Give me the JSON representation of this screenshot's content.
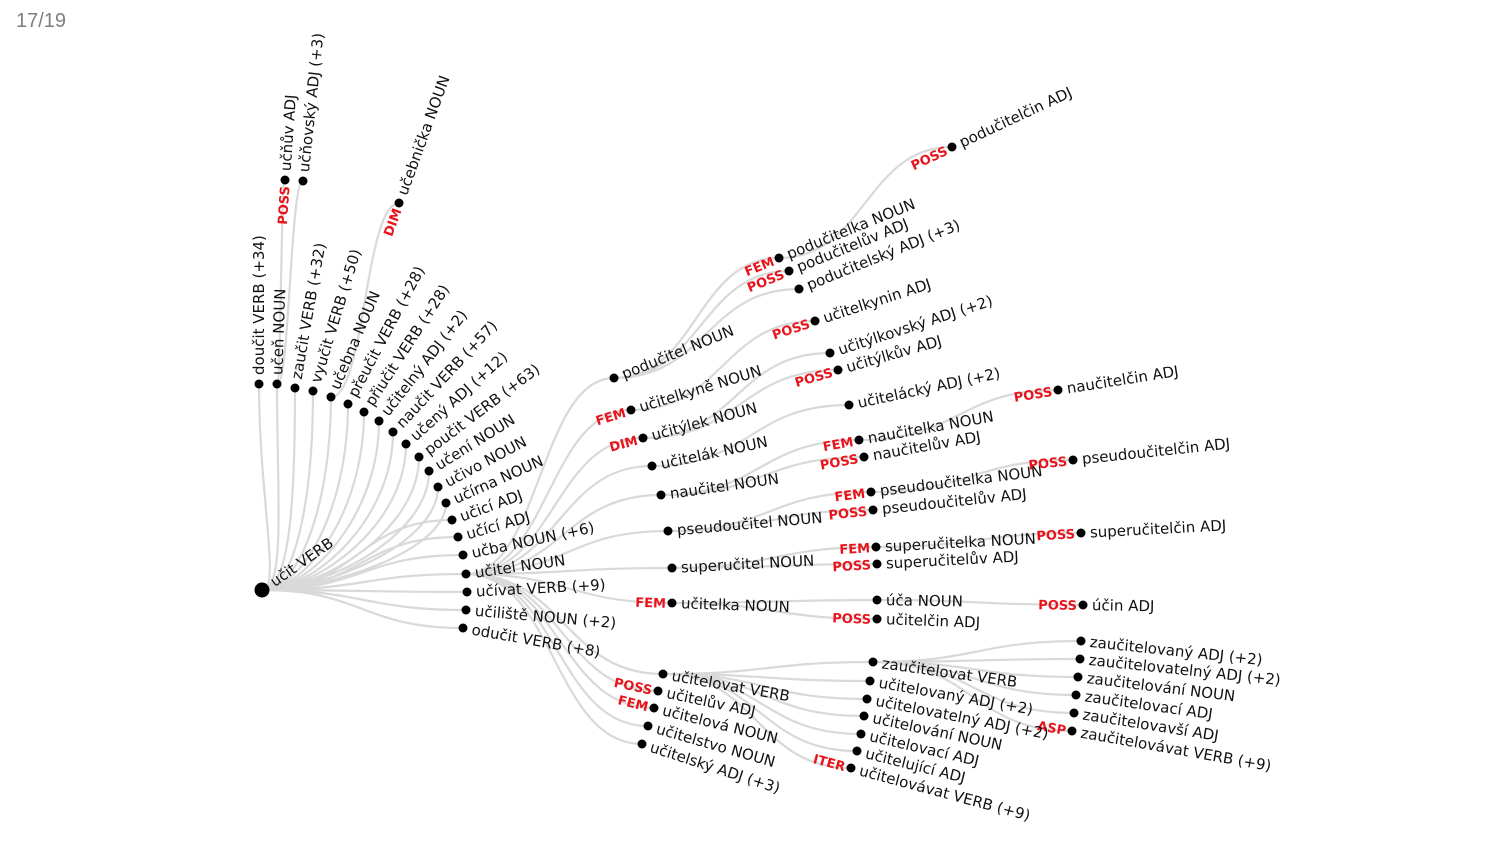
{
  "slide": {
    "page_number": "17/19"
  },
  "colors": {
    "edge": "#d9d9d9",
    "node": "#000000",
    "edge_label": "#e8141c"
  },
  "tree": {
    "nodes": [
      {
        "id": "root",
        "label": "učit VERB",
        "parent": null,
        "edge": ""
      },
      {
        "id": "n1",
        "label": "doučit VERB (+34)",
        "parent": "root",
        "edge": ""
      },
      {
        "id": "n2",
        "label": "učeň NOUN",
        "parent": "root",
        "edge": ""
      },
      {
        "id": "n2a",
        "label": "učňův ADJ",
        "parent": "n2",
        "edge": "POSS"
      },
      {
        "id": "n2b",
        "label": "učňovský ADJ (+3)",
        "parent": "n2",
        "edge": ""
      },
      {
        "id": "n3",
        "label": "zaučit VERB (+32)",
        "parent": "root",
        "edge": ""
      },
      {
        "id": "n4",
        "label": "vyučit VERB (+50)",
        "parent": "root",
        "edge": ""
      },
      {
        "id": "n5",
        "label": "učebna NOUN",
        "parent": "root",
        "edge": ""
      },
      {
        "id": "n5a",
        "label": "učebnička NOUN",
        "parent": "n5",
        "edge": "DIM"
      },
      {
        "id": "n6",
        "label": "přeučit VERB (+28)",
        "parent": "root",
        "edge": ""
      },
      {
        "id": "n7",
        "label": "přiučit VERB (+28)",
        "parent": "root",
        "edge": ""
      },
      {
        "id": "n8",
        "label": "učitelný ADJ (+2)",
        "parent": "root",
        "edge": ""
      },
      {
        "id": "n9",
        "label": "naučit VERB (+57)",
        "parent": "root",
        "edge": ""
      },
      {
        "id": "n10",
        "label": "učený ADJ (+12)",
        "parent": "root",
        "edge": ""
      },
      {
        "id": "n11",
        "label": "poučit VERB (+63)",
        "parent": "root",
        "edge": ""
      },
      {
        "id": "n12",
        "label": "učení NOUN",
        "parent": "root",
        "edge": ""
      },
      {
        "id": "n13",
        "label": "učivo NOUN",
        "parent": "root",
        "edge": ""
      },
      {
        "id": "n14",
        "label": "učírna NOUN",
        "parent": "root",
        "edge": ""
      },
      {
        "id": "n15",
        "label": "učicí ADJ",
        "parent": "root",
        "edge": ""
      },
      {
        "id": "n16",
        "label": "učící ADJ",
        "parent": "root",
        "edge": ""
      },
      {
        "id": "n17",
        "label": "učba NOUN (+6)",
        "parent": "root",
        "edge": ""
      },
      {
        "id": "t",
        "label": "učitel NOUN",
        "parent": "root",
        "edge": ""
      },
      {
        "id": "n19",
        "label": "učívat VERB (+9)",
        "parent": "root",
        "edge": ""
      },
      {
        "id": "n20",
        "label": "učiliště NOUN (+2)",
        "parent": "root",
        "edge": ""
      },
      {
        "id": "n21",
        "label": "odučit VERB (+8)",
        "parent": "root",
        "edge": ""
      },
      {
        "id": "p",
        "label": "podučitel NOUN",
        "parent": "t",
        "edge": ""
      },
      {
        "id": "p1",
        "label": "podučitelka NOUN",
        "parent": "p",
        "edge": "FEM"
      },
      {
        "id": "p1a",
        "label": "podučitelčin ADJ",
        "parent": "p1",
        "edge": "POSS"
      },
      {
        "id": "p2",
        "label": "podučitelův ADJ",
        "parent": "p",
        "edge": "POSS"
      },
      {
        "id": "p3",
        "label": "podučitelský ADJ (+3)",
        "parent": "p",
        "edge": ""
      },
      {
        "id": "k",
        "label": "učitelkyně NOUN",
        "parent": "t",
        "edge": "FEM"
      },
      {
        "id": "k1",
        "label": "učitelkynin ADJ",
        "parent": "k",
        "edge": "POSS"
      },
      {
        "id": "y",
        "label": "učitýlek NOUN",
        "parent": "t",
        "edge": "DIM"
      },
      {
        "id": "y1",
        "label": "učitýlkovský ADJ (+2)",
        "parent": "y",
        "edge": ""
      },
      {
        "id": "y2",
        "label": "učitýlkův ADJ",
        "parent": "y",
        "edge": "POSS"
      },
      {
        "id": "l",
        "label": "učitelák NOUN",
        "parent": "t",
        "edge": ""
      },
      {
        "id": "l1",
        "label": "učitelácký ADJ (+2)",
        "parent": "l",
        "edge": ""
      },
      {
        "id": "na",
        "label": "naučitel NOUN",
        "parent": "t",
        "edge": ""
      },
      {
        "id": "na1",
        "label": "naučitelka NOUN",
        "parent": "na",
        "edge": "FEM"
      },
      {
        "id": "na1a",
        "label": "naučitelčin ADJ",
        "parent": "na1",
        "edge": "POSS"
      },
      {
        "id": "na2",
        "label": "naučitelův ADJ",
        "parent": "na",
        "edge": "POSS"
      },
      {
        "id": "ps",
        "label": "pseudoučitel NOUN",
        "parent": "t",
        "edge": ""
      },
      {
        "id": "ps1",
        "label": "pseudoučitelka NOUN",
        "parent": "ps",
        "edge": "FEM"
      },
      {
        "id": "ps1a",
        "label": "pseudoučitelčin ADJ",
        "parent": "ps1",
        "edge": "POSS"
      },
      {
        "id": "ps2",
        "label": "pseudoučitelův ADJ",
        "parent": "ps",
        "edge": "POSS"
      },
      {
        "id": "su",
        "label": "superučitel NOUN",
        "parent": "t",
        "edge": ""
      },
      {
        "id": "su1",
        "label": "superučitelka NOUN",
        "parent": "su",
        "edge": "FEM"
      },
      {
        "id": "su1a",
        "label": "superučitelčin ADJ",
        "parent": "su1",
        "edge": "POSS"
      },
      {
        "id": "su2",
        "label": "superučitelův ADJ",
        "parent": "su",
        "edge": "POSS"
      },
      {
        "id": "ka",
        "label": "učitelka NOUN",
        "parent": "t",
        "edge": "FEM"
      },
      {
        "id": "ka1",
        "label": "úča NOUN",
        "parent": "ka",
        "edge": ""
      },
      {
        "id": "ka1a",
        "label": "účin ADJ",
        "parent": "ka1",
        "edge": "POSS"
      },
      {
        "id": "ka2",
        "label": "učitelčin ADJ",
        "parent": "ka",
        "edge": "POSS"
      },
      {
        "id": "v",
        "label": "učitelovat VERB",
        "parent": "t",
        "edge": ""
      },
      {
        "id": "z",
        "label": "zaučitelovat VERB",
        "parent": "v",
        "edge": ""
      },
      {
        "id": "z1",
        "label": "zaučitelovaný ADJ (+2)",
        "parent": "z",
        "edge": ""
      },
      {
        "id": "z2",
        "label": "zaučitelovatelný ADJ (+2)",
        "parent": "z",
        "edge": ""
      },
      {
        "id": "z3",
        "label": "zaučitelování NOUN",
        "parent": "z",
        "edge": ""
      },
      {
        "id": "z4",
        "label": "zaučitelovací ADJ",
        "parent": "z",
        "edge": ""
      },
      {
        "id": "z5",
        "label": "zaučitelovavší ADJ",
        "parent": "z",
        "edge": ""
      },
      {
        "id": "z6",
        "label": "zaučitelovávat VERB (+9)",
        "parent": "z",
        "edge": "ASP"
      },
      {
        "id": "v1",
        "label": "učitelovaný ADJ (+2)",
        "parent": "v",
        "edge": ""
      },
      {
        "id": "v2",
        "label": "učitelovatelný ADJ (+2)",
        "parent": "v",
        "edge": ""
      },
      {
        "id": "v3",
        "label": "učitelování NOUN",
        "parent": "v",
        "edge": ""
      },
      {
        "id": "v4",
        "label": "učitelovací ADJ",
        "parent": "v",
        "edge": ""
      },
      {
        "id": "v5",
        "label": "učitelující ADJ",
        "parent": "v",
        "edge": ""
      },
      {
        "id": "v6",
        "label": "učitelovávat VERB (+9)",
        "parent": "v",
        "edge": "ITER"
      },
      {
        "id": "w",
        "label": "učitelův ADJ",
        "parent": "t",
        "edge": "POSS"
      },
      {
        "id": "o",
        "label": "učitelová NOUN",
        "parent": "t",
        "edge": "FEM"
      },
      {
        "id": "s",
        "label": "učitelstvo NOUN",
        "parent": "t",
        "edge": ""
      },
      {
        "id": "sk",
        "label": "učitelský ADJ (+3)",
        "parent": "t",
        "edge": ""
      }
    ]
  }
}
